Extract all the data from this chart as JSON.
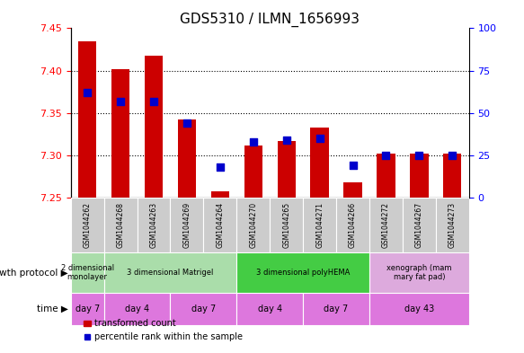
{
  "title": "GDS5310 / ILMN_1656993",
  "samples": [
    "GSM1044262",
    "GSM1044268",
    "GSM1044263",
    "GSM1044269",
    "GSM1044264",
    "GSM1044270",
    "GSM1044265",
    "GSM1044271",
    "GSM1044266",
    "GSM1044272",
    "GSM1044267",
    "GSM1044273"
  ],
  "transformed_count": [
    7.435,
    7.402,
    7.418,
    7.342,
    7.258,
    7.312,
    7.317,
    7.333,
    7.268,
    7.302,
    7.302,
    7.302
  ],
  "percentile_rank": [
    62,
    57,
    57,
    44,
    18,
    33,
    34,
    35,
    19,
    25,
    25,
    25
  ],
  "y_min": 7.25,
  "y_max": 7.45,
  "y_ticks": [
    7.25,
    7.3,
    7.35,
    7.4,
    7.45
  ],
  "right_y_ticks": [
    0,
    25,
    50,
    75,
    100
  ],
  "bar_color": "#cc0000",
  "dot_color": "#0000cc",
  "growth_protocol_groups": [
    {
      "label": "2 dimensional\nmonolayer",
      "start": 0,
      "end": 1,
      "color": "#99ee99"
    },
    {
      "label": "3 dimensional Matrigel",
      "start": 1,
      "end": 5,
      "color": "#99ee99"
    },
    {
      "label": "3 dimensional polyHEMA",
      "start": 5,
      "end": 9,
      "color": "#55dd55"
    },
    {
      "label": "xenograph (mam\nmary fat pad)",
      "start": 9,
      "end": 12,
      "color": "#ee99ee"
    }
  ],
  "time_groups": [
    {
      "label": "day 7",
      "start": 0,
      "end": 1,
      "color": "#ee66ee"
    },
    {
      "label": "day 4",
      "start": 1,
      "end": 3,
      "color": "#ee66ee"
    },
    {
      "label": "day 7",
      "start": 3,
      "end": 5,
      "color": "#ee66ee"
    },
    {
      "label": "day 4",
      "start": 5,
      "end": 7,
      "color": "#ee66ee"
    },
    {
      "label": "day 7",
      "start": 7,
      "end": 9,
      "color": "#ee66ee"
    },
    {
      "label": "day 43",
      "start": 9,
      "end": 12,
      "color": "#ee66ee"
    }
  ],
  "bar_width": 0.55,
  "dot_size": 30,
  "background_color": "#ffffff",
  "tick_fontsize": 8,
  "title_fontsize": 11,
  "row_label_growth": "growth protocol",
  "row_label_time": "time",
  "legend_transformed": "transformed count",
  "legend_percentile": "percentile rank within the sample",
  "sample_box_color": "#cccccc",
  "gp_green1": "#aaddaa",
  "gp_green2": "#44cc44",
  "gp_pink": "#ddaadd",
  "time_pink": "#dd77dd"
}
